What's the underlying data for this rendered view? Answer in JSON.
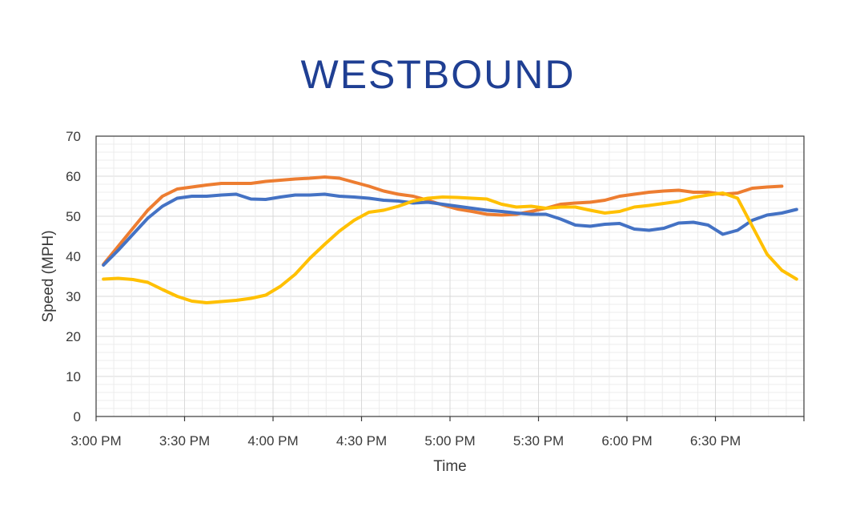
{
  "chart_data": {
    "type": "line",
    "title": "WESTBOUND",
    "xlabel": "Time",
    "ylabel": "Speed (MPH)",
    "ylim": [
      0,
      70
    ],
    "y_ticks": [
      "0",
      "10",
      "20",
      "30",
      "40",
      "50",
      "60",
      "70"
    ],
    "x_ticks": [
      "3:00 PM",
      "3:30 PM",
      "4:00 PM",
      "4:30 PM",
      "5:00 PM",
      "5:30 PM",
      "6:00 PM",
      "6:30 PM"
    ],
    "x_minutes_from": "3:00 PM",
    "xlim_minutes": [
      0,
      240
    ],
    "grid": true,
    "legend": "none",
    "series": [
      {
        "color": "#ed7d31",
        "points": [
          [
            2.5,
            38
          ],
          [
            7.5,
            42.5
          ],
          [
            12.5,
            47
          ],
          [
            17.5,
            51.5
          ],
          [
            22.5,
            55
          ],
          [
            27.5,
            56.8
          ],
          [
            32.5,
            57.3
          ],
          [
            37.5,
            57.8
          ],
          [
            42.5,
            58.2
          ],
          [
            47.5,
            58.2
          ],
          [
            52.5,
            58.2
          ],
          [
            57.5,
            58.7
          ],
          [
            62.5,
            59
          ],
          [
            67.5,
            59.3
          ],
          [
            72.5,
            59.5
          ],
          [
            77.5,
            59.8
          ],
          [
            82.5,
            59.5
          ],
          [
            87.5,
            58.5
          ],
          [
            92.5,
            57.5
          ],
          [
            97.5,
            56.3
          ],
          [
            102.5,
            55.5
          ],
          [
            107.5,
            55
          ],
          [
            112.5,
            54
          ],
          [
            117.5,
            52.8
          ],
          [
            122.5,
            51.8
          ],
          [
            127.5,
            51.2
          ],
          [
            132.5,
            50.5
          ],
          [
            137.5,
            50.3
          ],
          [
            142.5,
            50.5
          ],
          [
            147.5,
            51.2
          ],
          [
            152.5,
            52
          ],
          [
            157.5,
            53
          ],
          [
            162.5,
            53.3
          ],
          [
            167.5,
            53.5
          ],
          [
            172.5,
            54
          ],
          [
            177.5,
            55
          ],
          [
            182.5,
            55.5
          ],
          [
            187.5,
            56
          ],
          [
            192.5,
            56.3
          ],
          [
            197.5,
            56.5
          ],
          [
            202.5,
            56
          ],
          [
            207.5,
            56
          ],
          [
            212.5,
            55.5
          ],
          [
            217.5,
            55.8
          ],
          [
            222.5,
            57
          ],
          [
            227.5,
            57.3
          ],
          [
            232.5,
            57.5
          ]
        ]
      },
      {
        "color": "#4472c4",
        "points": [
          [
            2.5,
            37.8
          ],
          [
            7.5,
            41.5
          ],
          [
            12.5,
            45.5
          ],
          [
            17.5,
            49.5
          ],
          [
            22.5,
            52.5
          ],
          [
            27.5,
            54.5
          ],
          [
            32.5,
            55
          ],
          [
            37.5,
            55
          ],
          [
            42.5,
            55.3
          ],
          [
            47.5,
            55.5
          ],
          [
            52.5,
            54.3
          ],
          [
            57.5,
            54.2
          ],
          [
            62.5,
            54.8
          ],
          [
            67.5,
            55.3
          ],
          [
            72.5,
            55.3
          ],
          [
            77.5,
            55.5
          ],
          [
            82.5,
            55
          ],
          [
            87.5,
            54.8
          ],
          [
            92.5,
            54.5
          ],
          [
            97.5,
            54
          ],
          [
            102.5,
            53.8
          ],
          [
            107.5,
            53.3
          ],
          [
            112.5,
            53.5
          ],
          [
            117.5,
            53
          ],
          [
            122.5,
            52.5
          ],
          [
            127.5,
            52
          ],
          [
            132.5,
            51.5
          ],
          [
            137.5,
            51.2
          ],
          [
            142.5,
            50.8
          ],
          [
            147.5,
            50.5
          ],
          [
            152.5,
            50.5
          ],
          [
            157.5,
            49.3
          ],
          [
            162.5,
            47.8
          ],
          [
            167.5,
            47.5
          ],
          [
            172.5,
            48
          ],
          [
            177.5,
            48.2
          ],
          [
            182.5,
            46.8
          ],
          [
            187.5,
            46.5
          ],
          [
            192.5,
            47
          ],
          [
            197.5,
            48.3
          ],
          [
            202.5,
            48.5
          ],
          [
            207.5,
            47.8
          ],
          [
            212.5,
            45.5
          ],
          [
            217.5,
            46.5
          ],
          [
            222.5,
            49
          ],
          [
            227.5,
            50.3
          ],
          [
            232.5,
            50.8
          ],
          [
            237.5,
            51.7
          ]
        ]
      },
      {
        "color": "#ffc000",
        "points": [
          [
            2.5,
            34.3
          ],
          [
            7.5,
            34.5
          ],
          [
            12.5,
            34.2
          ],
          [
            17.5,
            33.5
          ],
          [
            22.5,
            31.7
          ],
          [
            27.5,
            30
          ],
          [
            32.5,
            28.8
          ],
          [
            37.5,
            28.4
          ],
          [
            42.5,
            28.7
          ],
          [
            47.5,
            29
          ],
          [
            52.5,
            29.5
          ],
          [
            57.5,
            30.3
          ],
          [
            62.5,
            32.5
          ],
          [
            67.5,
            35.5
          ],
          [
            72.5,
            39.5
          ],
          [
            77.5,
            43
          ],
          [
            82.5,
            46.3
          ],
          [
            87.5,
            49
          ],
          [
            92.5,
            51
          ],
          [
            97.5,
            51.5
          ],
          [
            102.5,
            52.5
          ],
          [
            107.5,
            53.8
          ],
          [
            112.5,
            54.5
          ],
          [
            117.5,
            54.8
          ],
          [
            122.5,
            54.7
          ],
          [
            127.5,
            54.5
          ],
          [
            132.5,
            54.3
          ],
          [
            137.5,
            53
          ],
          [
            142.5,
            52.3
          ],
          [
            147.5,
            52.5
          ],
          [
            152.5,
            52
          ],
          [
            157.5,
            52.3
          ],
          [
            162.5,
            52.3
          ],
          [
            167.5,
            51.5
          ],
          [
            172.5,
            50.8
          ],
          [
            177.5,
            51.2
          ],
          [
            182.5,
            52.3
          ],
          [
            187.5,
            52.7
          ],
          [
            192.5,
            53.2
          ],
          [
            197.5,
            53.7
          ],
          [
            202.5,
            54.7
          ],
          [
            207.5,
            55.3
          ],
          [
            212.5,
            55.8
          ],
          [
            217.5,
            54.5
          ],
          [
            222.5,
            47.5
          ],
          [
            227.5,
            40.5
          ],
          [
            232.5,
            36.5
          ],
          [
            237.5,
            34.3
          ]
        ]
      }
    ]
  }
}
